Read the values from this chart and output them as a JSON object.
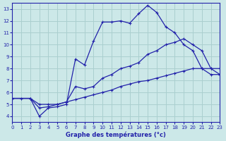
{
  "title": "Graphe des températures (°c)",
  "background_color": "#cce8e8",
  "grid_color": "#aacfcf",
  "line_color": "#2222aa",
  "xlim": [
    0,
    23
  ],
  "ylim": [
    3.5,
    13.5
  ],
  "xticks": [
    0,
    1,
    2,
    3,
    4,
    5,
    6,
    7,
    8,
    9,
    10,
    11,
    12,
    13,
    14,
    15,
    16,
    17,
    18,
    19,
    20,
    21,
    22,
    23
  ],
  "yticks": [
    4,
    5,
    6,
    7,
    8,
    9,
    10,
    11,
    12,
    13
  ],
  "line1_x": [
    0,
    1,
    2,
    3,
    4,
    5,
    6,
    7,
    8,
    9,
    10,
    11,
    12,
    13,
    14,
    15,
    16,
    17,
    18,
    19,
    20,
    21,
    22,
    23
  ],
  "line1_y": [
    5.5,
    5.5,
    5.5,
    5.0,
    5.0,
    5.0,
    5.2,
    5.4,
    5.6,
    5.8,
    6.0,
    6.2,
    6.5,
    6.7,
    6.9,
    7.0,
    7.2,
    7.4,
    7.6,
    7.8,
    8.0,
    8.0,
    7.5,
    7.5
  ],
  "line2_x": [
    0,
    2,
    3,
    4,
    5,
    6,
    7,
    8,
    9,
    10,
    11,
    12,
    13,
    14,
    15,
    16,
    17,
    18,
    19,
    20,
    21,
    22,
    23
  ],
  "line2_y": [
    5.5,
    5.5,
    4.0,
    4.7,
    4.8,
    5.0,
    8.8,
    8.3,
    10.3,
    11.9,
    11.9,
    12.0,
    11.8,
    12.6,
    13.3,
    12.7,
    11.5,
    11.0,
    10.0,
    9.5,
    8.0,
    8.0,
    8.0
  ],
  "line3_x": [
    0,
    2,
    3,
    4,
    5,
    6,
    7,
    8,
    9,
    10,
    11,
    12,
    13,
    14,
    15,
    16,
    17,
    18,
    19,
    20,
    21,
    22,
    23
  ],
  "line3_y": [
    5.5,
    5.5,
    4.7,
    4.8,
    5.0,
    5.2,
    6.5,
    6.3,
    6.5,
    7.2,
    7.5,
    8.0,
    8.2,
    8.5,
    9.2,
    9.5,
    10.0,
    10.2,
    10.5,
    10.0,
    9.5,
    8.0,
    7.5
  ]
}
